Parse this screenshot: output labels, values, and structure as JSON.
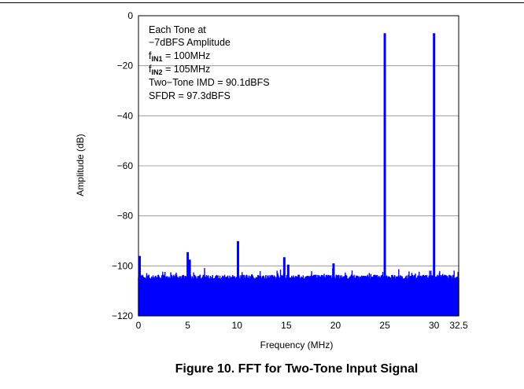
{
  "chart_data": {
    "type": "line",
    "xlabel": "Frequency (MHz)",
    "ylabel": "Amplitude (dB)",
    "xlim": [
      0,
      32.5
    ],
    "ylim": [
      -120,
      0
    ],
    "x_ticks": [
      0,
      5,
      10,
      15,
      20,
      25,
      30,
      32.5
    ],
    "x_tick_labels": [
      "0",
      "5",
      "10",
      "15",
      "20",
      "25",
      "30",
      "32.5"
    ],
    "y_ticks": [
      0,
      -20,
      -40,
      -60,
      -80,
      -100,
      -120
    ],
    "y_tick_labels": [
      "0",
      "−20",
      "−40",
      "−60",
      "−80",
      "−100",
      "−120"
    ],
    "grid": "horizontal",
    "noise_floor_db": -106,
    "series": [
      {
        "color": "#0000ff",
        "peaks": [
          {
            "x": 0,
            "y": -96
          },
          {
            "x": 5,
            "y": -94.5
          },
          {
            "x": 5.2,
            "y": -97.5
          },
          {
            "x": 10.1,
            "y": -90.1
          },
          {
            "x": 14.8,
            "y": -96.5
          },
          {
            "x": 15.2,
            "y": -99.5
          },
          {
            "x": 19.8,
            "y": -99
          },
          {
            "x": 25,
            "y": -7
          },
          {
            "x": 30,
            "y": -7
          }
        ]
      }
    ],
    "annotations": {
      "line1": "Each Tone at",
      "line2": "−7dBFS Amplitude",
      "fin1_prefix": "f",
      "fin1_sub": "IN1",
      "fin1_value": " = 100MHz",
      "fin2_prefix": "f",
      "fin2_sub": "IN2",
      "fin2_value": " = 105MHz",
      "line5": "Two−Tone IMD = 90.1dBFS",
      "line6": "SFDR = 97.3dBFS"
    }
  },
  "caption": "Figure 10. FFT for Two-Tone Input Signal"
}
